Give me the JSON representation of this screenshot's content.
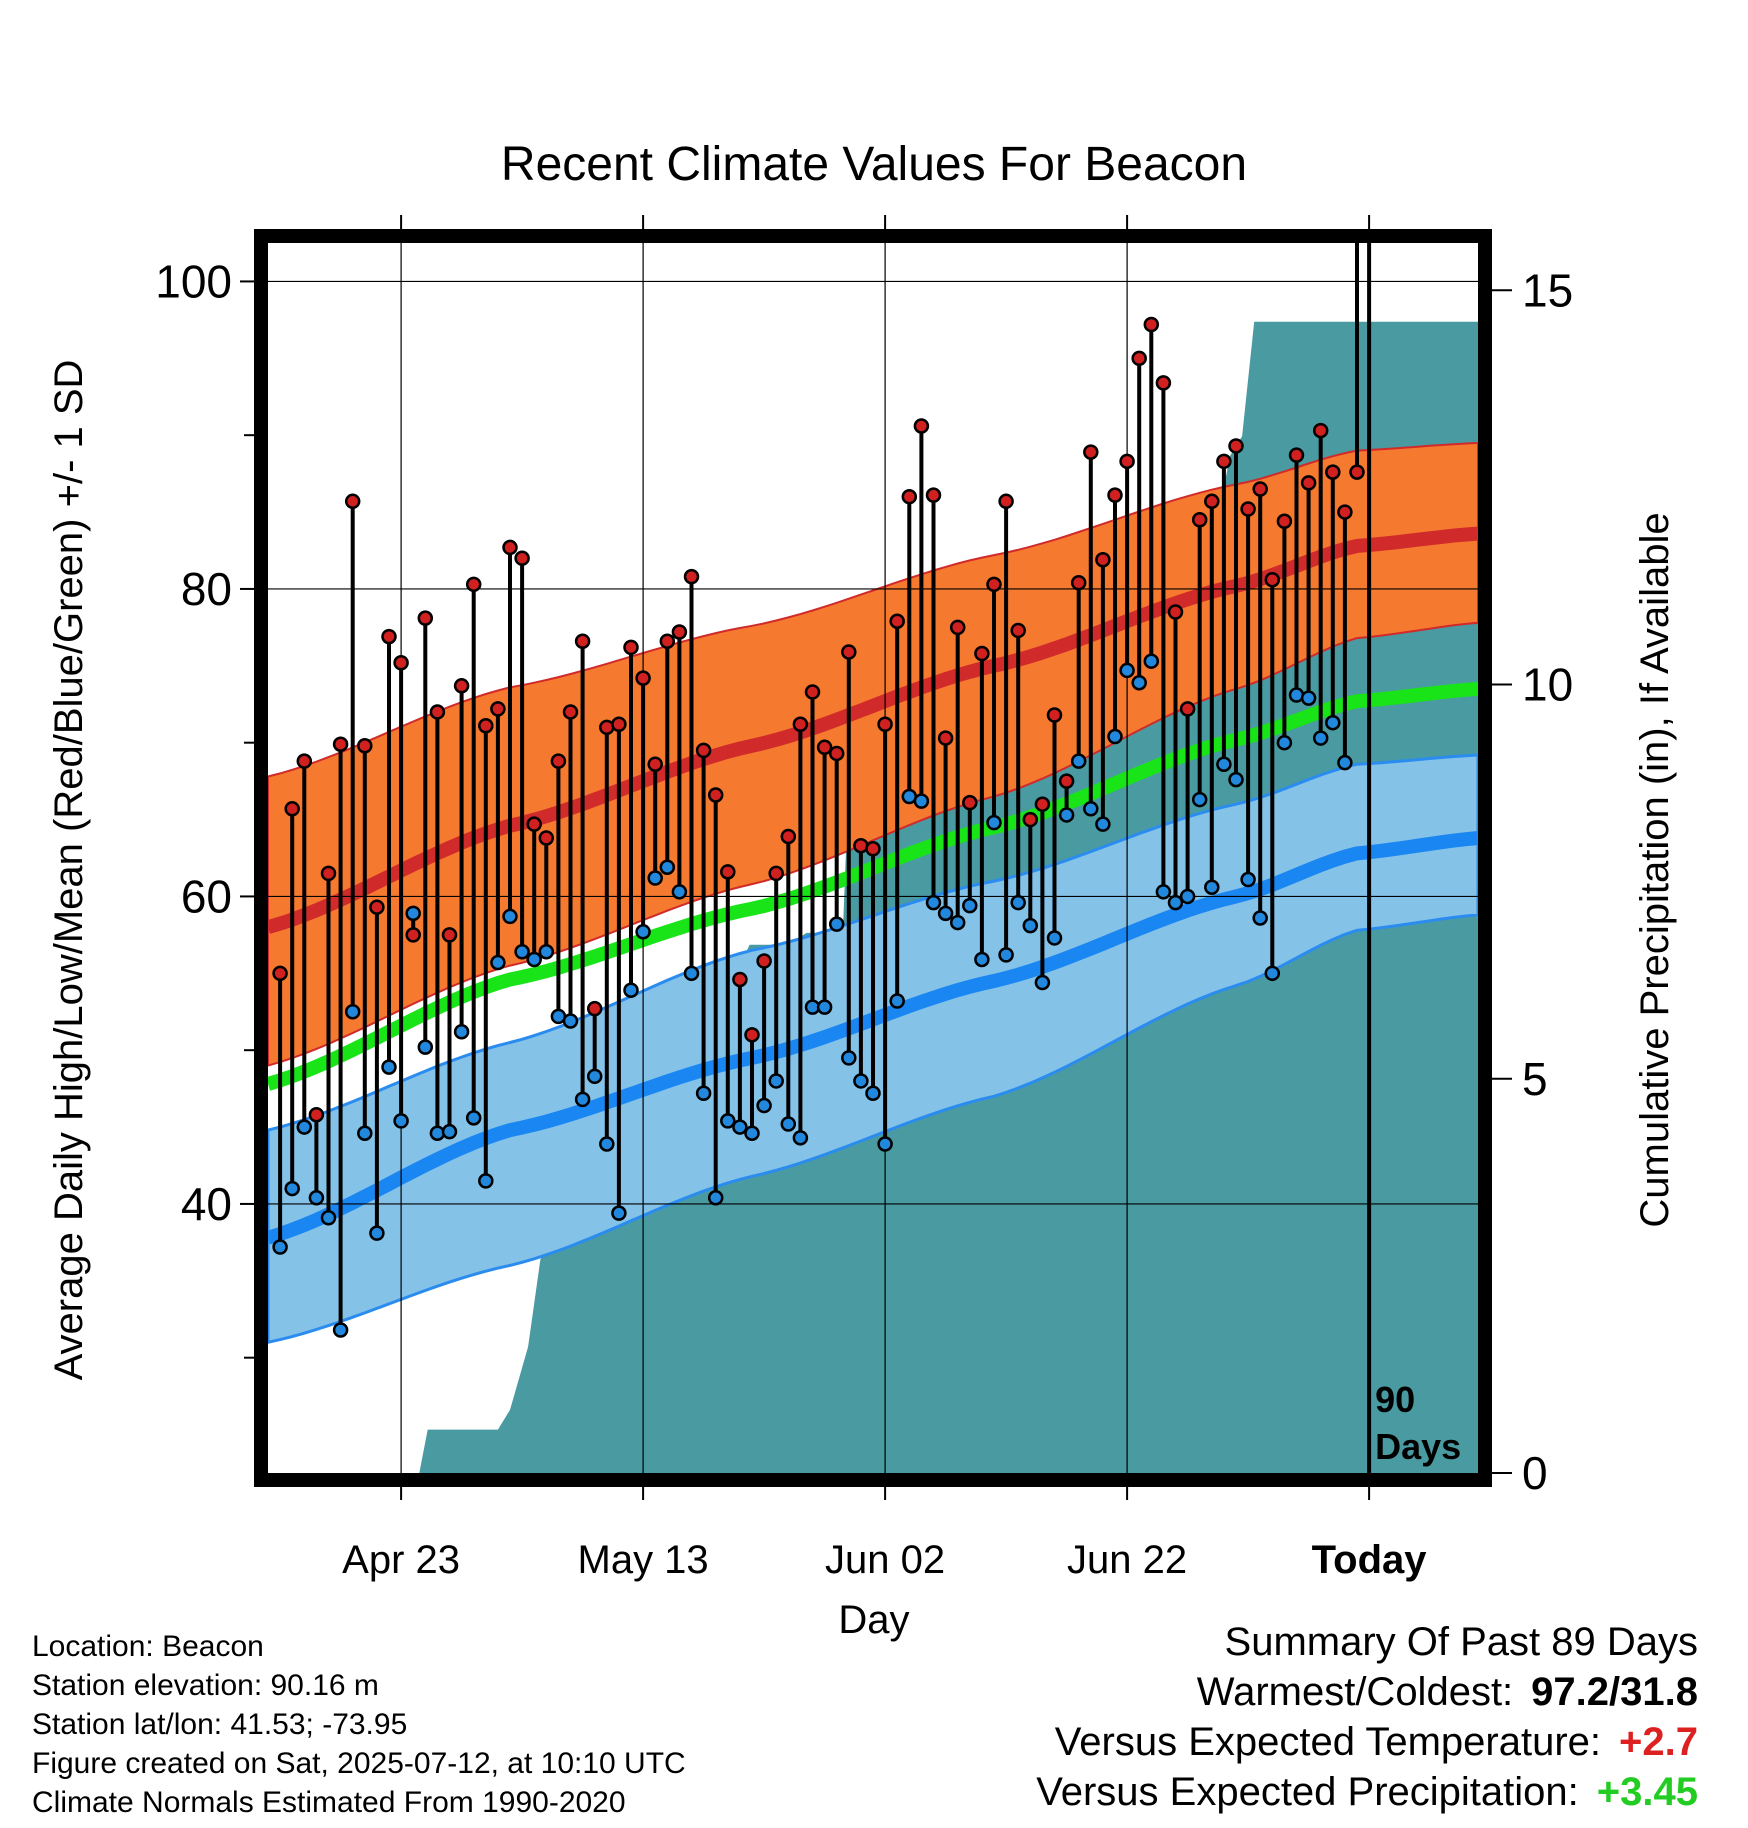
{
  "chart_data": {
    "type": "line",
    "title": "Recent Climate Values For Beacon",
    "xlabel": "Day",
    "ylabel_left": "Average Daily High/Low/Mean (Red/Blue/Green) +/- 1 SD",
    "ylabel_right": "Cumulative Precipitation (in), If Available",
    "x_tick_labels": [
      "Apr 23",
      "May 13",
      "Jun 02",
      "Jun 22",
      "Today"
    ],
    "x_tick_day_index": [
      11,
      31,
      51,
      71,
      91
    ],
    "x_range_days": [
      0,
      100
    ],
    "today_label": "90\nDays",
    "today_index": 91,
    "y_left": {
      "min": 22.5,
      "max": 102.5,
      "ticks": [
        40,
        60,
        80,
        100
      ],
      "minor_ticks": [
        30,
        50,
        70,
        90
      ]
    },
    "y_right": {
      "min": 0,
      "max": 15.6,
      "ticks": [
        0,
        5,
        10,
        15
      ]
    },
    "grid": true,
    "colors": {
      "high_band": "#f5792f",
      "high_mean": "#d02a2a",
      "low_band": "#84c2e8",
      "low_mean": "#1a86f2",
      "low_band_edge": "#2a8cef",
      "mean_line": "#18e418",
      "precip_fill": "#4a9aa2",
      "high_marker": "#d02020",
      "low_marker": "#2288dd"
    },
    "normals": {
      "days": [
        0,
        20,
        40,
        60,
        80,
        90,
        100
      ],
      "high_mean": [
        58.0,
        64.6,
        69.8,
        75.0,
        80.2,
        82.8,
        83.6
      ],
      "high_upper": [
        67.8,
        73.6,
        77.6,
        82.2,
        86.8,
        89.0,
        89.5
      ],
      "high_lower": [
        49.0,
        55.5,
        60.8,
        66.5,
        73.5,
        76.8,
        77.8
      ],
      "mean": [
        47.8,
        54.6,
        59.2,
        64.5,
        70.2,
        72.7,
        73.5
      ],
      "low_mean": [
        37.8,
        44.8,
        49.5,
        54.5,
        60.0,
        62.8,
        63.8
      ],
      "low_upper": [
        44.8,
        50.5,
        56.5,
        61.0,
        66.0,
        68.6,
        69.2
      ],
      "low_lower": [
        31.0,
        36.0,
        41.8,
        47.0,
        54.2,
        57.8,
        58.8
      ]
    },
    "series": [
      {
        "name": "High",
        "values": [
          55.0,
          65.7,
          68.8,
          45.8,
          61.5,
          69.9,
          85.7,
          69.8,
          59.3,
          76.9,
          75.2,
          57.5,
          78.1,
          72.0,
          57.5,
          73.7,
          80.3,
          71.1,
          72.2,
          82.7,
          82.0,
          64.7,
          63.8,
          68.8,
          72.0,
          76.6,
          52.7,
          71.0,
          71.2,
          76.2,
          74.2,
          68.6,
          76.6,
          77.2,
          80.8,
          69.5,
          66.6,
          61.6,
          54.6,
          51.0,
          55.8,
          61.5,
          63.9,
          71.2,
          73.3,
          69.7,
          69.3,
          75.9,
          63.3,
          63.1,
          71.2,
          77.9,
          86.0,
          90.6,
          86.1,
          70.3,
          77.5,
          66.1,
          75.8,
          80.3,
          85.7,
          77.3,
          65.0,
          66.0,
          71.8,
          67.5,
          80.4,
          88.9,
          81.9,
          86.1,
          88.3,
          95.0,
          97.2,
          93.4,
          78.5,
          72.2,
          84.5,
          85.7,
          88.3,
          89.3,
          85.2,
          86.5,
          80.6,
          84.4,
          88.7,
          86.9,
          90.3,
          87.6,
          85.0,
          87.6
        ]
      },
      {
        "name": "Low",
        "values": [
          37.2,
          41.0,
          45.0,
          40.4,
          39.1,
          31.8,
          52.5,
          44.6,
          38.1,
          48.9,
          45.4,
          58.9,
          50.2,
          44.6,
          44.7,
          51.2,
          45.6,
          41.5,
          55.7,
          58.7,
          56.4,
          55.9,
          56.4,
          52.2,
          51.9,
          46.8,
          48.3,
          43.9,
          39.4,
          53.9,
          57.7,
          61.2,
          61.9,
          60.3,
          55.0,
          47.2,
          40.4,
          45.4,
          45.0,
          44.6,
          46.4,
          48.0,
          45.2,
          44.3,
          52.8,
          52.8,
          58.2,
          49.5,
          48.0,
          47.2,
          43.9,
          53.2,
          66.5,
          66.2,
          59.6,
          58.9,
          58.3,
          59.4,
          55.9,
          64.8,
          56.2,
          59.6,
          58.1,
          54.4,
          57.3,
          65.3,
          68.8,
          65.7,
          64.7,
          70.4,
          74.7,
          73.9,
          75.3,
          60.3,
          59.6,
          60.0,
          66.3,
          60.6,
          68.6,
          67.6,
          61.1,
          58.6,
          55.0,
          70.0,
          73.1,
          72.9,
          70.3,
          71.3,
          68.7
        ]
      }
    ],
    "precip_steps": [
      [
        0,
        0
      ],
      [
        12.5,
        0
      ],
      [
        13.2,
        0.55
      ],
      [
        19,
        0.55
      ],
      [
        20,
        0.8
      ],
      [
        21.5,
        1.6
      ],
      [
        22.5,
        2.7
      ],
      [
        23.5,
        3.2
      ],
      [
        25.5,
        3.2
      ],
      [
        26.5,
        5.3
      ],
      [
        30.5,
        5.3
      ],
      [
        31.2,
        5.8
      ],
      [
        32.5,
        5.8
      ],
      [
        34.5,
        6.1
      ],
      [
        38,
        6.1
      ],
      [
        39.8,
        6.7
      ],
      [
        43,
        6.7
      ],
      [
        44.5,
        6.85
      ],
      [
        47.5,
        6.85
      ],
      [
        48.2,
        9.6
      ],
      [
        53,
        9.6
      ],
      [
        55,
        10.1
      ],
      [
        57,
        10.45
      ],
      [
        61,
        10.45
      ],
      [
        64,
        10.6
      ],
      [
        65.5,
        11.05
      ],
      [
        66.5,
        11.75
      ],
      [
        69.5,
        11.75
      ],
      [
        71,
        11.85
      ],
      [
        73.5,
        11.85
      ],
      [
        75,
        12.1
      ],
      [
        78.5,
        12.1
      ],
      [
        79.5,
        12.9
      ],
      [
        80.5,
        13.15
      ],
      [
        81.5,
        14.6
      ],
      [
        100,
        14.6
      ]
    ]
  },
  "summary": {
    "heading": "Summary Of Past 89 Days",
    "warm_cold_label": "Warmest/Coldest:",
    "warm_cold_value": "97.2/31.8",
    "temp_label": "Versus Expected Temperature:",
    "temp_value": "+2.7",
    "temp_color": "#dd2020",
    "precip_label": "Versus Expected Precipitation:",
    "precip_value": "+3.45",
    "precip_color": "#22cc22"
  },
  "info": {
    "location": "Location: Beacon",
    "elevation": "Station elevation: 90.16 m",
    "latlon": "Station lat/lon: 41.53; -73.95",
    "created": "Figure created on Sat, 2025-07-12, at 10:10 UTC",
    "normals": "Climate Normals Estimated From 1990-2020"
  }
}
